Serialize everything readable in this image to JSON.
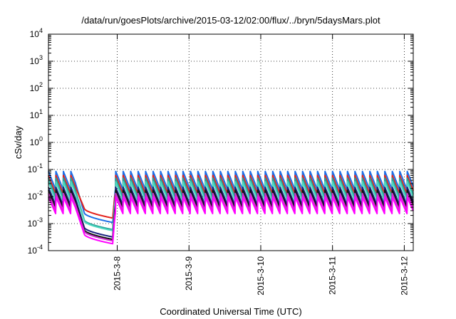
{
  "chart_data": {
    "type": "line",
    "title": "/data/run/goesPlots/archive/2015-03-12/02:00/flux/../bryn/5daysMars.plot",
    "xlabel": "Coordinated Universal Time (UTC)",
    "ylabel": "cSv/day",
    "yscale": "log",
    "ylim": [
      0.0001,
      10000
    ],
    "y_ticks": [
      {
        "base": "10",
        "exp": "-4",
        "value": 0.0001
      },
      {
        "base": "10",
        "exp": "-3",
        "value": 0.001
      },
      {
        "base": "10",
        "exp": "-2",
        "value": 0.01
      },
      {
        "base": "10",
        "exp": "-1",
        "value": 0.1
      },
      {
        "base": "10",
        "exp": "0",
        "value": 1
      },
      {
        "base": "10",
        "exp": "1",
        "value": 10
      },
      {
        "base": "10",
        "exp": "2",
        "value": 100
      },
      {
        "base": "10",
        "exp": "3",
        "value": 1000
      },
      {
        "base": "10",
        "exp": "4",
        "value": 10000
      }
    ],
    "x_range": [
      "2015-03-07T01:00",
      "2015-03-12T03:00"
    ],
    "x_ticks": [
      {
        "label": "2015-3-8",
        "date": "2015-03-08T00:00"
      },
      {
        "label": "2015-3-9",
        "date": "2015-03-09T00:00"
      },
      {
        "label": "2015-3-10",
        "date": "2015-03-10T00:00"
      },
      {
        "label": "2015-3-11",
        "date": "2015-03-11T00:00"
      },
      {
        "label": "2015-3-12",
        "date": "2015-03-12T00:00"
      }
    ],
    "grid": true,
    "legend": "none",
    "sawtooth_period_hours": 2.5,
    "blackout": {
      "start": "2015-03-07T10:00",
      "end": "2015-03-07T22:30"
    },
    "series": [
      {
        "color": "#1f6fe6",
        "peak": 0.085,
        "trough": 0.017,
        "blackout_min": 0.0011
      },
      {
        "color": "#e3201b",
        "peak": 0.06,
        "trough": 0.012,
        "blackout_min": 0.0016
      },
      {
        "color": "#2aa198",
        "peak": 0.048,
        "trough": 0.0085,
        "blackout_min": 0.0006
      },
      {
        "color": "#4dd9c0",
        "peak": 0.035,
        "trough": 0.0065,
        "blackout_min": 0.00055
      },
      {
        "color": "#1a237e",
        "peak": 0.022,
        "trough": 0.0045,
        "blackout_min": 0.00032
      },
      {
        "color": "#111111",
        "peak": 0.017,
        "trough": 0.0035,
        "blackout_min": 0.00026
      },
      {
        "color": "#cc33cc",
        "peak": 0.013,
        "trough": 0.0028,
        "blackout_min": 0.00023
      },
      {
        "color": "#ff00ff",
        "peak": 0.0095,
        "trough": 0.0022,
        "blackout_min": 0.00018
      }
    ]
  }
}
